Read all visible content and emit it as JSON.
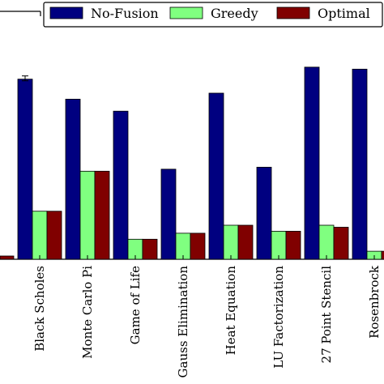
{
  "chart_data": {
    "type": "bar",
    "title": "",
    "xlabel": "",
    "ylabel": "",
    "categories": [
      "Black Scholes",
      "Monte Carlo Pi",
      "Game of Life",
      "Gauss Elimination",
      "Heat Equation",
      "LU Factorization",
      "27 Point Stencil",
      "Rosenbrock"
    ],
    "series": [
      {
        "name": "No-Fusion",
        "color": "#000080",
        "values": [
          0.9,
          0.8,
          0.74,
          0.45,
          0.83,
          0.46,
          0.96,
          0.95
        ]
      },
      {
        "name": "Greedy",
        "color": "#80ff80",
        "values": [
          0.24,
          0.44,
          0.1,
          0.13,
          0.17,
          0.14,
          0.17,
          0.04
        ]
      },
      {
        "name": "Optimal",
        "color": "#800000",
        "values": [
          0.24,
          0.44,
          0.1,
          0.13,
          0.17,
          0.14,
          0.16,
          0.04
        ]
      }
    ],
    "ylim": [
      0,
      1
    ],
    "legend": "top-right",
    "grid": false,
    "notes": "Values estimated relative to the visible plot area; y-axis ticks not shown in image."
  }
}
